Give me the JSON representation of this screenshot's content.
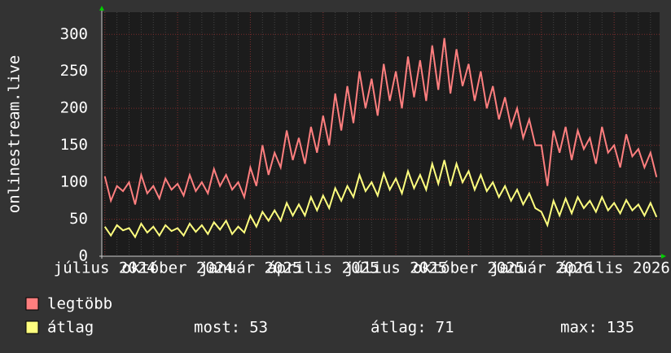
{
  "chart_data": {
    "type": "line",
    "y_label": "onlinestream.live",
    "categories": [
      "július 2024",
      null,
      null,
      null,
      null,
      null,
      null,
      null,
      null,
      null,
      null,
      null,
      "október 2024",
      null,
      null,
      null,
      null,
      null,
      null,
      null,
      null,
      null,
      null,
      null,
      "január 2025",
      null,
      null,
      null,
      null,
      null,
      null,
      null,
      null,
      null,
      null,
      null,
      "április 2025",
      null,
      null,
      null,
      null,
      null,
      null,
      null,
      null,
      null,
      null,
      null,
      "július 2025",
      null,
      null,
      null,
      null,
      null,
      null,
      null,
      null,
      null,
      null,
      null,
      "október 2025",
      null,
      null,
      null,
      null,
      null,
      null,
      null,
      null,
      null,
      null,
      null,
      "január 2026",
      null,
      null,
      null,
      null,
      null,
      null,
      null,
      null,
      null,
      null,
      null,
      "április 2026",
      null,
      null,
      null,
      null,
      null,
      null,
      null
    ],
    "series": [
      {
        "name": "legtöbb",
        "color": "#ff7f7f",
        "values": [
          108,
          75,
          95,
          88,
          100,
          70,
          110,
          85,
          95,
          78,
          105,
          90,
          98,
          82,
          110,
          88,
          100,
          85,
          118,
          95,
          110,
          90,
          100,
          80,
          120,
          95,
          150,
          110,
          140,
          120,
          170,
          130,
          160,
          125,
          175,
          140,
          190,
          150,
          220,
          170,
          230,
          180,
          250,
          200,
          240,
          190,
          260,
          210,
          250,
          200,
          270,
          215,
          265,
          210,
          285,
          225,
          295,
          220,
          280,
          230,
          260,
          210,
          250,
          200,
          230,
          185,
          215,
          175,
          200,
          160,
          185,
          150,
          150,
          95,
          170,
          140,
          175,
          130,
          170,
          145,
          160,
          125,
          175,
          140,
          150,
          120,
          165,
          135,
          145,
          120,
          140,
          107
        ]
      },
      {
        "name": "átlag",
        "color": "#ffff7f",
        "values": [
          40,
          28,
          42,
          35,
          38,
          26,
          44,
          32,
          40,
          28,
          42,
          34,
          38,
          28,
          44,
          33,
          42,
          30,
          46,
          36,
          48,
          30,
          40,
          32,
          55,
          40,
          60,
          48,
          62,
          48,
          72,
          55,
          70,
          55,
          80,
          62,
          82,
          65,
          92,
          75,
          95,
          80,
          110,
          88,
          100,
          82,
          112,
          90,
          105,
          85,
          115,
          92,
          110,
          90,
          125,
          98,
          130,
          95,
          125,
          100,
          115,
          90,
          110,
          88,
          100,
          80,
          95,
          75,
          90,
          70,
          85,
          65,
          60,
          42,
          75,
          55,
          78,
          58,
          80,
          65,
          75,
          60,
          80,
          62,
          72,
          58,
          76,
          62,
          70,
          55,
          72,
          53
        ]
      }
    ],
    "stats": [
      {
        "label": "most:",
        "value": 53
      },
      {
        "label": "átlag:",
        "value": 71
      },
      {
        "label": "max:",
        "value": 135
      }
    ],
    "ylim": [
      0,
      330
    ],
    "yticks": [
      0,
      50,
      100,
      150,
      200,
      250,
      300
    ],
    "grid": true
  }
}
